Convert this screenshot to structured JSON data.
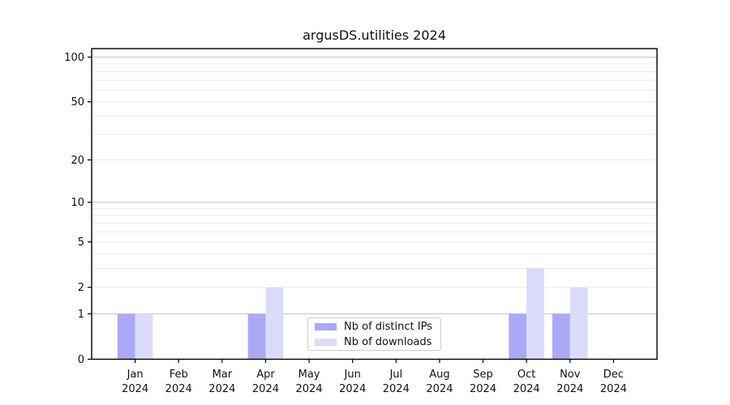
{
  "chart_data": {
    "type": "bar",
    "title": "argusDS.utilities 2024",
    "year_label": "2024",
    "months": [
      "Jan",
      "Feb",
      "Mar",
      "Apr",
      "May",
      "Jun",
      "Jul",
      "Aug",
      "Sep",
      "Oct",
      "Nov",
      "Dec"
    ],
    "categories": [
      "Jan 2024",
      "Feb 2024",
      "Mar 2024",
      "Apr 2024",
      "May 2024",
      "Jun 2024",
      "Jul 2024",
      "Aug 2024",
      "Sep 2024",
      "Oct 2024",
      "Nov 2024",
      "Dec 2024"
    ],
    "series": [
      {
        "name": "Nb of distinct IPs",
        "color": "#a9a9f8",
        "values": [
          1,
          0,
          0,
          1,
          0,
          0,
          0,
          0,
          0,
          1,
          1,
          0
        ]
      },
      {
        "name": "Nb of downloads",
        "color": "#dbdbfb",
        "values": [
          1,
          0,
          0,
          2,
          0,
          0,
          0,
          0,
          0,
          3,
          2,
          0
        ]
      }
    ],
    "y_scale": "log1p",
    "ylim": [
      0,
      114
    ],
    "y_ticks_labeled": [
      0,
      1,
      2,
      5,
      10,
      20,
      50,
      100
    ],
    "y_gridlines_major": [
      1,
      10,
      100
    ],
    "y_gridlines_minor": [
      2,
      3,
      4,
      5,
      6,
      7,
      8,
      9,
      20,
      30,
      40,
      50,
      60,
      70,
      80,
      90
    ],
    "legend_position": "lower center",
    "grid": true,
    "colors": {
      "grid_major": "#c4c4c4",
      "grid_minor": "#ebebeb",
      "spine": "#000000",
      "tick_text": "#111111",
      "background": "#ffffff"
    }
  }
}
